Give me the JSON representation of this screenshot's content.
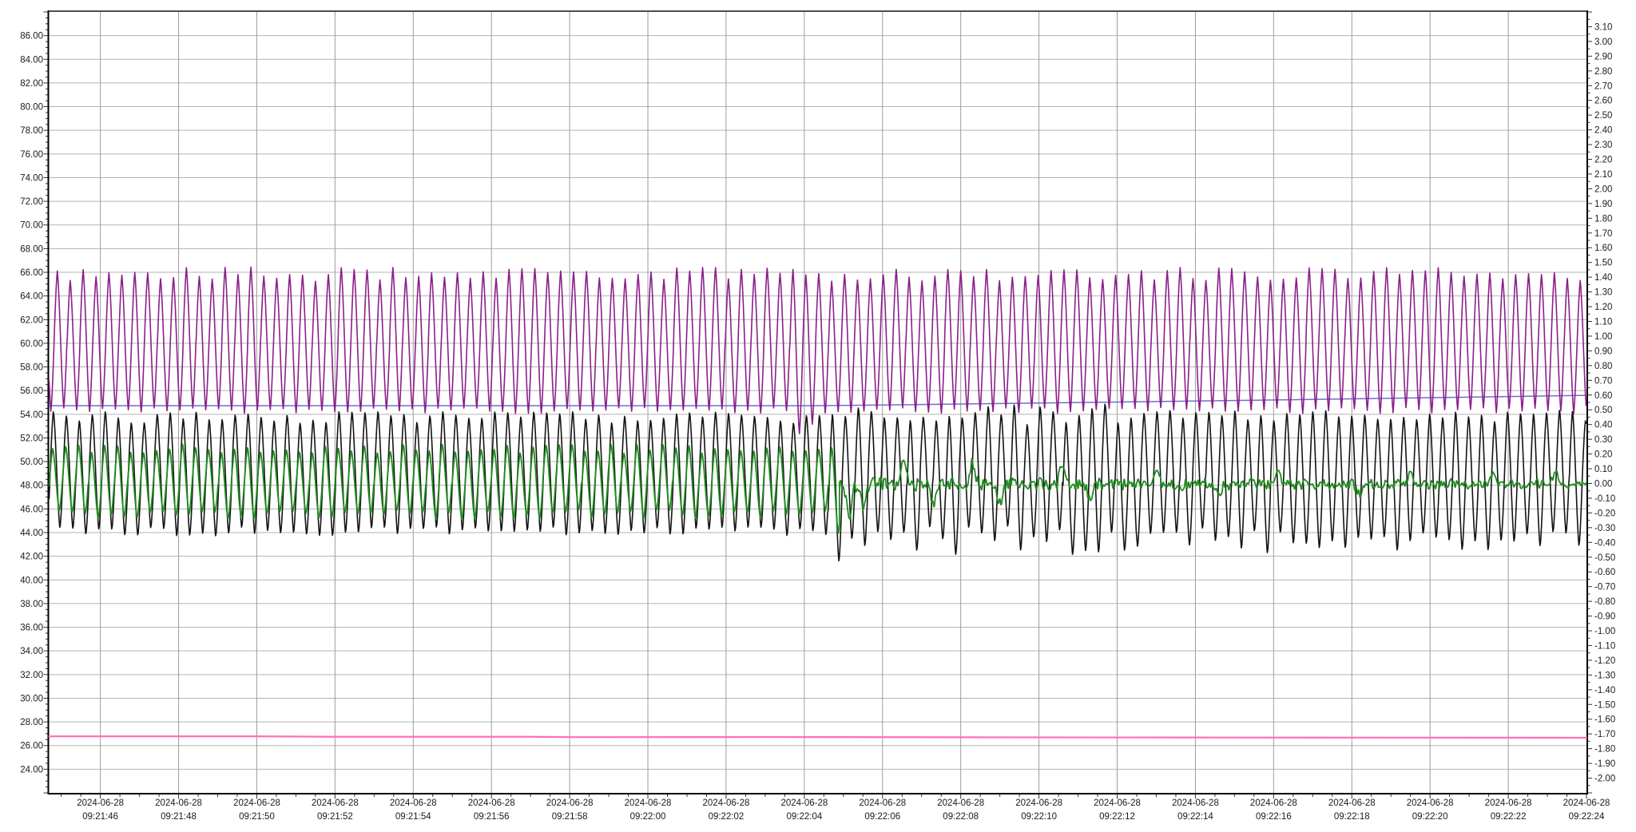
{
  "chart_data": {
    "type": "line",
    "title": "",
    "grid": true,
    "legend": "none",
    "plot_background": "#ffffff",
    "grid_color_h": "#b3b3b3",
    "grid_color_v": "#9c9c9c",
    "border_color": "#000000",
    "top_border_color": "#4d4d4d",
    "x_axis": {
      "kind": "time",
      "date": "2024-06-28",
      "t_start_s": 44.69,
      "t_end_s": 84.0,
      "tick_interval_s": 2,
      "minor_tick_s": 0.5,
      "tick_labels": [
        {
          "date": "2024-06-28",
          "time": "09:21:46",
          "t": 46
        },
        {
          "date": "2024-06-28",
          "time": "09:21:48",
          "t": 48
        },
        {
          "date": "2024-06-28",
          "time": "09:21:50",
          "t": 50
        },
        {
          "date": "2024-06-28",
          "time": "09:21:52",
          "t": 52
        },
        {
          "date": "2024-06-28",
          "time": "09:21:54",
          "t": 54
        },
        {
          "date": "2024-06-28",
          "time": "09:21:56",
          "t": 56
        },
        {
          "date": "2024-06-28",
          "time": "09:21:58",
          "t": 58
        },
        {
          "date": "2024-06-28",
          "time": "09:22:00",
          "t": 60
        },
        {
          "date": "2024-06-28",
          "time": "09:22:02",
          "t": 62
        },
        {
          "date": "2024-06-28",
          "time": "09:22:04",
          "t": 64
        },
        {
          "date": "2024-06-28",
          "time": "09:22:06",
          "t": 66
        },
        {
          "date": "2024-06-28",
          "time": "09:22:08",
          "t": 68
        },
        {
          "date": "2024-06-28",
          "time": "09:22:10",
          "t": 70
        },
        {
          "date": "2024-06-28",
          "time": "09:22:12",
          "t": 72
        },
        {
          "date": "2024-06-28",
          "time": "09:22:14",
          "t": 74
        },
        {
          "date": "2024-06-28",
          "time": "09:22:16",
          "t": 76
        },
        {
          "date": "2024-06-28",
          "time": "09:22:18",
          "t": 78
        },
        {
          "date": "2024-06-28",
          "time": "09:22:20",
          "t": 80
        },
        {
          "date": "2024-06-28",
          "time": "09:22:22",
          "t": 82
        },
        {
          "date": "2024-06-28",
          "time": "09:22:24",
          "t": 84
        }
      ]
    },
    "y_axis_left": {
      "min": 22,
      "max": 88,
      "tick": 2,
      "minor_tick": 0.5,
      "labels": [
        "86.00",
        "84.00",
        "82.00",
        "80.00",
        "78.00",
        "76.00",
        "74.00",
        "72.00",
        "70.00",
        "68.00",
        "66.00",
        "64.00",
        "62.00",
        "60.00",
        "58.00",
        "56.00",
        "54.00",
        "52.00",
        "50.00",
        "48.00",
        "46.00",
        "44.00",
        "42.00",
        "40.00",
        "38.00",
        "36.00",
        "34.00",
        "32.00",
        "30.00",
        "28.00",
        "26.00",
        "24.00"
      ],
      "label_values": [
        86,
        84,
        82,
        80,
        78,
        76,
        74,
        72,
        70,
        68,
        66,
        64,
        62,
        60,
        58,
        56,
        54,
        52,
        50,
        48,
        46,
        44,
        42,
        40,
        38,
        36,
        34,
        32,
        30,
        28,
        26,
        24
      ]
    },
    "y_axis_right": {
      "min": -2.1,
      "max": 3.2,
      "tick": 0.1,
      "minor_tick": 0.05,
      "labels": [
        "3.10",
        "3.00",
        "2.90",
        "2.80",
        "2.70",
        "2.60",
        "2.50",
        "2.40",
        "2.30",
        "2.20",
        "2.10",
        "2.00",
        "1.90",
        "1.80",
        "1.70",
        "1.60",
        "1.50",
        "1.40",
        "1.30",
        "1.20",
        "1.10",
        "1.00",
        "0.90",
        "0.80",
        "0.70",
        "0.60",
        "0.50",
        "0.40",
        "0.30",
        "0.20",
        "0.10",
        "0.00",
        "-0.10",
        "-0.20",
        "-0.30",
        "-0.40",
        "-0.50",
        "-0.60",
        "-0.70",
        "-0.80",
        "-0.90",
        "-1.00",
        "-1.10",
        "-1.20",
        "-1.30",
        "-1.40",
        "-1.50",
        "-1.60",
        "-1.70",
        "-1.80",
        "-1.90",
        "-2.00"
      ],
      "label_values": [
        3.1,
        3.0,
        2.9,
        2.8,
        2.7,
        2.6,
        2.5,
        2.4,
        2.3,
        2.2,
        2.1,
        2.0,
        1.9,
        1.8,
        1.7,
        1.6,
        1.5,
        1.4,
        1.3,
        1.2,
        1.1,
        1.0,
        0.9,
        0.8,
        0.7,
        0.6,
        0.5,
        0.4,
        0.3,
        0.2,
        0.1,
        0.0,
        -0.1,
        -0.2,
        -0.3,
        -0.4,
        -0.5,
        -0.6,
        -0.7,
        -0.8,
        -0.9,
        -1.0,
        -1.1,
        -1.2,
        -1.3,
        -1.4,
        -1.5,
        -1.6,
        -1.7,
        -1.8,
        -1.9,
        -2.0
      ]
    },
    "series": [
      {
        "name": "pink-flat-line",
        "color": "#FF6EB4",
        "width": 2.2,
        "axis": "left",
        "gen": "points",
        "points": [
          [
            44.69,
            26.78
          ],
          [
            50,
            26.78
          ],
          [
            52,
            26.74
          ],
          [
            57,
            26.74
          ],
          [
            58,
            26.71
          ],
          [
            63,
            26.72
          ],
          [
            68,
            26.7
          ],
          [
            74,
            26.68
          ],
          [
            79,
            26.67
          ],
          [
            84,
            26.66
          ]
        ]
      },
      {
        "name": "blue-setpoint-line",
        "color": "#6E6EC8",
        "width": 1.5,
        "axis": "left",
        "gen": "points",
        "points": [
          [
            44.69,
            54.72
          ],
          [
            64,
            54.72
          ],
          [
            66,
            54.78
          ],
          [
            70,
            54.95
          ],
          [
            74,
            55.12
          ],
          [
            78,
            55.3
          ],
          [
            81,
            55.45
          ],
          [
            84,
            55.6
          ]
        ]
      },
      {
        "name": "purple-oscillation",
        "color": "#8B1F8B",
        "width": 1.6,
        "axis": "left",
        "gen": "cycles",
        "period_s": 0.33,
        "phase": 0.19,
        "seed": 11,
        "segments": [
          {
            "t0": 44.69,
            "t1": 84.0,
            "peak": [
              65.2,
              66.4
            ],
            "trough": [
              54.1,
              54.6
            ]
          }
        ],
        "trough_anomalies": [
          {
            "t": 63.95,
            "low": 52.4
          },
          {
            "t": 64.28,
            "low": 53.2
          }
        ]
      },
      {
        "name": "black-oscillation",
        "color": "#141414",
        "width": 1.6,
        "axis": "left",
        "gen": "cycles",
        "period_s": 0.332,
        "phase": 0.31,
        "seed": 29,
        "segments": [
          {
            "t0": 44.69,
            "t1": 64.6,
            "peak": [
              53.3,
              54.3
            ],
            "trough": [
              43.6,
              44.4
            ]
          },
          {
            "t0": 64.6,
            "t1": 72.5,
            "peak": [
              53.2,
              55.0
            ],
            "trough": [
              41.9,
              44.6
            ]
          },
          {
            "t0": 72.5,
            "t1": 84.0,
            "peak": [
              53.3,
              54.5
            ],
            "trough": [
              42.4,
              44.3
            ]
          }
        ],
        "trough_anomalies": [
          {
            "t": 64.9,
            "low": 41.5
          },
          {
            "t": 75.8,
            "low": 42.2
          }
        ]
      },
      {
        "name": "green-oscillation",
        "color": "#1F8B1F",
        "width": 1.8,
        "axis": "left",
        "gen": "cycles-then-noise",
        "period_s": 0.332,
        "phase": 0.36,
        "seed": 47,
        "segments": [
          {
            "t0": 44.69,
            "t1": 64.9,
            "peak": [
              50.7,
              51.5
            ],
            "trough": [
              45.1,
              45.9
            ]
          }
        ],
        "trough_anomalies": [
          {
            "t": 64.75,
            "low": 43.9
          }
        ],
        "noise": {
          "t0": 64.9,
          "t1": 84.0,
          "base": 48.1,
          "amp_start": 0.55,
          "amp_end": 0.32,
          "lattice_hz": 28
        },
        "events": [
          [
            65.15,
            44.8
          ],
          [
            65.5,
            46.2
          ],
          [
            66.55,
            50.3
          ],
          [
            67.3,
            46.3
          ],
          [
            68.3,
            49.9
          ],
          [
            69.0,
            46.6
          ],
          [
            70.6,
            49.7
          ],
          [
            71.3,
            46.8
          ],
          [
            73.0,
            49.4
          ],
          [
            74.6,
            47.0
          ],
          [
            76.1,
            49.3
          ],
          [
            78.2,
            47.2
          ],
          [
            79.5,
            49.2
          ],
          [
            81.6,
            48.9
          ],
          [
            83.2,
            49.0
          ]
        ]
      }
    ]
  }
}
